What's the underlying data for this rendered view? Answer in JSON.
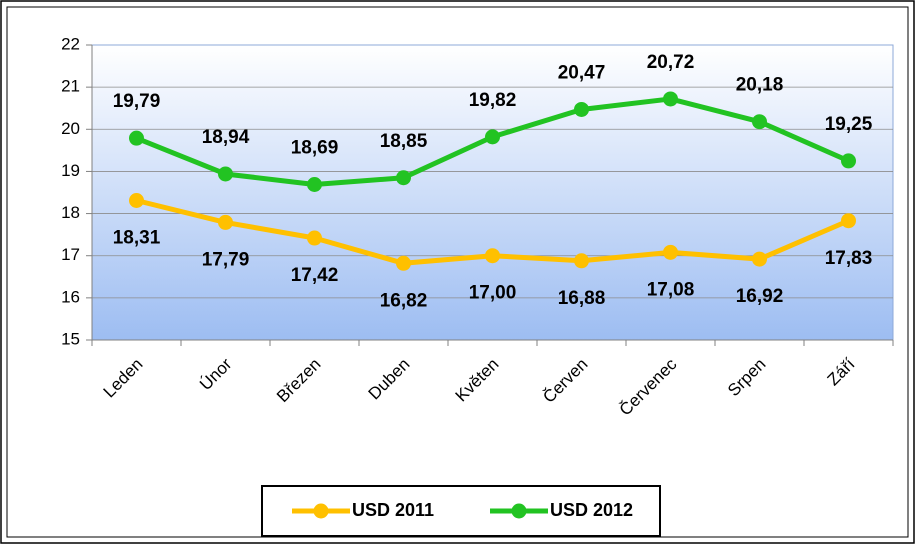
{
  "chart_data": {
    "type": "line",
    "categories": [
      "Leden",
      "Únor",
      "Březen",
      "Duben",
      "Květen",
      "Červen",
      "Červenec",
      "Srpen",
      "Září"
    ],
    "series": [
      {
        "name": "USD 2011",
        "color": "#FFC000",
        "values": [
          18.31,
          17.79,
          17.42,
          16.82,
          17.0,
          16.88,
          17.08,
          16.92,
          17.83
        ],
        "value_labels": [
          "18,31",
          "17,79",
          "17,42",
          "16,82",
          "17,00",
          "16,88",
          "17,08",
          "16,92",
          "17,83"
        ]
      },
      {
        "name": "USD 2012",
        "color": "#22C322",
        "values": [
          19.79,
          18.94,
          18.69,
          18.85,
          19.82,
          20.47,
          20.72,
          20.18,
          19.25
        ],
        "value_labels": [
          "19,79",
          "18,94",
          "18,69",
          "18,85",
          "19,82",
          "20,47",
          "20,72",
          "20,18",
          "19,25"
        ]
      }
    ],
    "ylim": [
      15,
      22
    ],
    "yticks": [
      15,
      16,
      17,
      18,
      19,
      20,
      21,
      22
    ],
    "grid": true,
    "legend": "bottom"
  }
}
